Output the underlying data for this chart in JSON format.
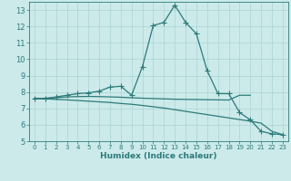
{
  "line1_x": [
    0,
    1,
    2,
    3,
    4,
    5,
    6,
    7,
    8,
    9,
    10,
    11,
    12,
    13,
    14,
    15,
    16,
    17,
    18,
    19,
    20,
    21,
    22,
    23
  ],
  "line1_y": [
    7.6,
    7.6,
    7.7,
    7.8,
    7.9,
    7.95,
    8.05,
    8.3,
    8.35,
    7.8,
    9.55,
    12.05,
    12.25,
    13.3,
    12.25,
    11.55,
    9.3,
    7.9,
    7.9,
    6.75,
    6.3,
    5.6,
    5.45,
    5.4
  ],
  "line2_x": [
    0,
    1,
    2,
    3,
    4,
    5,
    6,
    7,
    8,
    9,
    10,
    11,
    12,
    13,
    14,
    15,
    16,
    17,
    18,
    19,
    20
  ],
  "line2_y": [
    7.6,
    7.62,
    7.65,
    7.7,
    7.72,
    7.73,
    7.72,
    7.7,
    7.68,
    7.65,
    7.62,
    7.6,
    7.58,
    7.56,
    7.55,
    7.54,
    7.53,
    7.52,
    7.51,
    7.8,
    7.8
  ],
  "line3_x": [
    0,
    1,
    2,
    3,
    4,
    5,
    6,
    7,
    8,
    9,
    10,
    11,
    12,
    13,
    14,
    15,
    16,
    17,
    18,
    19,
    20,
    21,
    22,
    23
  ],
  "line3_y": [
    7.6,
    7.58,
    7.55,
    7.52,
    7.48,
    7.44,
    7.4,
    7.36,
    7.3,
    7.25,
    7.18,
    7.1,
    7.02,
    6.92,
    6.82,
    6.72,
    6.62,
    6.52,
    6.42,
    6.32,
    6.22,
    6.1,
    5.6,
    5.4
  ],
  "line_color": "#2d7a7a",
  "bg_color": "#cceaea",
  "grid_color": "#aad4d4",
  "xlabel": "Humidex (Indice chaleur)",
  "ylim": [
    5,
    13.5
  ],
  "xlim": [
    -0.5,
    23.5
  ],
  "yticks": [
    5,
    6,
    7,
    8,
    9,
    10,
    11,
    12,
    13
  ],
  "xticks": [
    0,
    1,
    2,
    3,
    4,
    5,
    6,
    7,
    8,
    9,
    10,
    11,
    12,
    13,
    14,
    15,
    16,
    17,
    18,
    19,
    20,
    21,
    22,
    23
  ],
  "marker": "+",
  "markersize": 4,
  "linewidth": 0.9
}
